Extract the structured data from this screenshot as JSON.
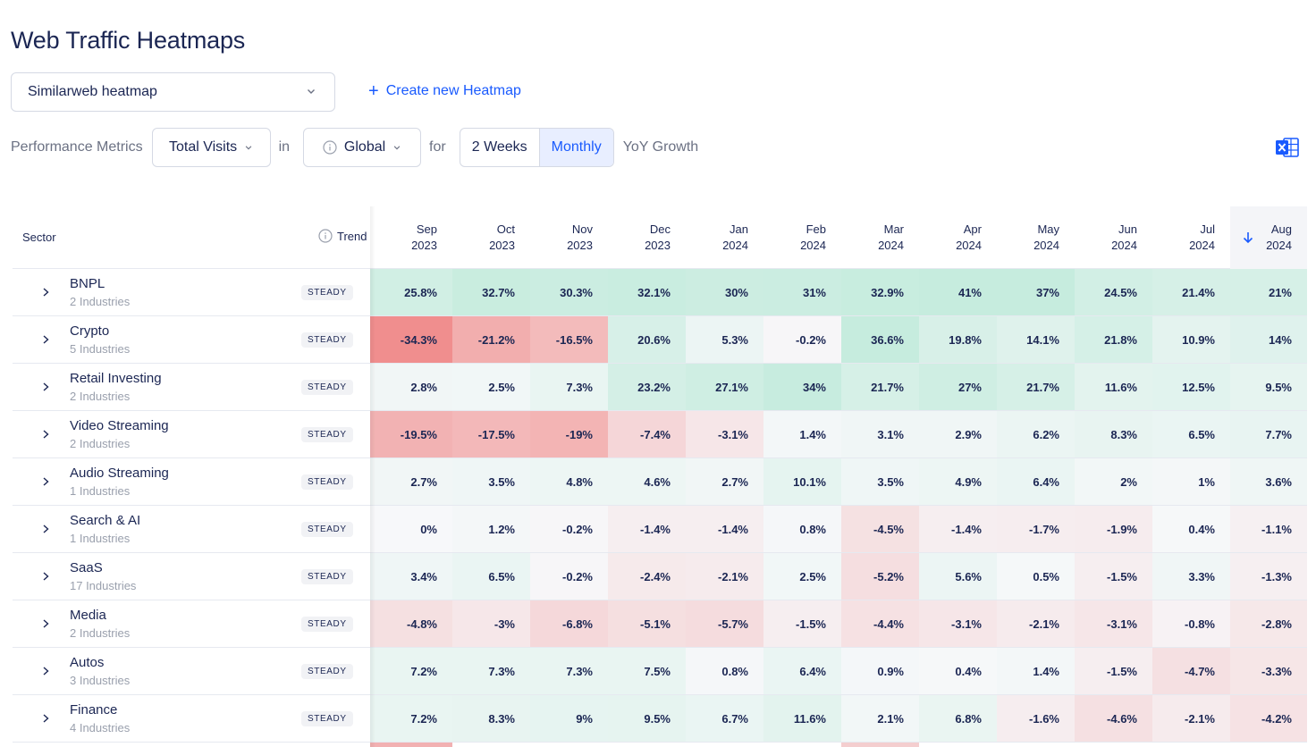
{
  "page": {
    "title": "Web Traffic Heatmaps"
  },
  "heatmap_select": {
    "value": "Similarweb heatmap",
    "icon": "chevron-down-icon"
  },
  "create_link": {
    "label": "Create new Heatmap",
    "icon": "plus-icon"
  },
  "filters": {
    "metrics_label": "Performance Metrics",
    "metric_value": "Total Visits",
    "in_word": "in",
    "region_value": "Global",
    "for_word": "for",
    "periods": [
      "2 Weeks",
      "Monthly"
    ],
    "active_period": "Monthly",
    "growth_label": "YoY Growth"
  },
  "colors": {
    "accent": "#195afe",
    "text_primary": "#1b2653",
    "text_muted": "#6b7183",
    "positive_strong": "#bfe9dc",
    "negative_strong": "#f19a9a"
  },
  "table": {
    "sector_header": "Sector",
    "trend_header": "Trend",
    "sort_icon": "arrow-down-icon",
    "months": [
      {
        "m": "Sep",
        "y": "2023"
      },
      {
        "m": "Oct",
        "y": "2023"
      },
      {
        "m": "Nov",
        "y": "2023"
      },
      {
        "m": "Dec",
        "y": "2023"
      },
      {
        "m": "Jan",
        "y": "2024"
      },
      {
        "m": "Feb",
        "y": "2024"
      },
      {
        "m": "Mar",
        "y": "2024"
      },
      {
        "m": "Apr",
        "y": "2024"
      },
      {
        "m": "May",
        "y": "2024"
      },
      {
        "m": "Jun",
        "y": "2024"
      },
      {
        "m": "Jul",
        "y": "2024"
      },
      {
        "m": "Aug",
        "y": "2024"
      }
    ],
    "rows": [
      {
        "name": "BNPL",
        "sub": "2 Industries",
        "trend": "STEADY",
        "values": [
          25.8,
          32.7,
          30.3,
          32.1,
          30,
          31,
          32.9,
          41,
          37,
          24.5,
          21.4,
          21
        ]
      },
      {
        "name": "Crypto",
        "sub": "5 Industries",
        "trend": "STEADY",
        "values": [
          -34.3,
          -21.2,
          -16.5,
          20.6,
          5.3,
          -0.2,
          36.6,
          19.8,
          14.1,
          21.8,
          10.9,
          14
        ]
      },
      {
        "name": "Retail Investing",
        "sub": "2 Industries",
        "trend": "STEADY",
        "values": [
          2.8,
          2.5,
          7.3,
          23.2,
          27.1,
          34,
          21.7,
          27,
          21.7,
          11.6,
          12.5,
          9.5
        ]
      },
      {
        "name": "Video Streaming",
        "sub": "2 Industries",
        "trend": "STEADY",
        "values": [
          -19.5,
          -17.5,
          -19,
          -7.4,
          -3.1,
          1.4,
          3.1,
          2.9,
          6.2,
          8.3,
          6.5,
          7.7
        ]
      },
      {
        "name": "Audio Streaming",
        "sub": "1 Industries",
        "trend": "STEADY",
        "values": [
          2.7,
          3.5,
          4.8,
          4.6,
          2.7,
          10.1,
          3.5,
          4.9,
          6.4,
          2,
          1,
          3.6
        ]
      },
      {
        "name": "Search & AI",
        "sub": "1 Industries",
        "trend": "STEADY",
        "values": [
          0,
          1.2,
          -0.2,
          -1.4,
          -1.4,
          0.8,
          -4.5,
          -1.4,
          -1.7,
          -1.9,
          0.4,
          -1.1
        ]
      },
      {
        "name": "SaaS",
        "sub": "17 Industries",
        "trend": "STEADY",
        "values": [
          3.4,
          6.5,
          -0.2,
          -2.4,
          -2.1,
          2.5,
          -5.2,
          5.6,
          0.5,
          -1.5,
          3.3,
          -1.3
        ]
      },
      {
        "name": "Media",
        "sub": "2 Industries",
        "trend": "STEADY",
        "values": [
          -4.8,
          -3,
          -6.8,
          -5.1,
          -5.7,
          -1.5,
          -4.4,
          -3.1,
          -2.1,
          -3.1,
          -0.8,
          -2.8
        ]
      },
      {
        "name": "Autos",
        "sub": "3 Industries",
        "trend": "STEADY",
        "values": [
          7.2,
          7.3,
          7.3,
          7.5,
          0.8,
          6.4,
          0.9,
          0.4,
          1.4,
          -1.5,
          -4.7,
          -3.3
        ]
      },
      {
        "name": "Finance",
        "sub": "4 Industries",
        "trend": "STEADY",
        "values": [
          7.2,
          8.3,
          9,
          9.5,
          6.7,
          11.6,
          2.1,
          6.8,
          -1.6,
          -4.6,
          -2.1,
          -4.2
        ]
      }
    ]
  }
}
